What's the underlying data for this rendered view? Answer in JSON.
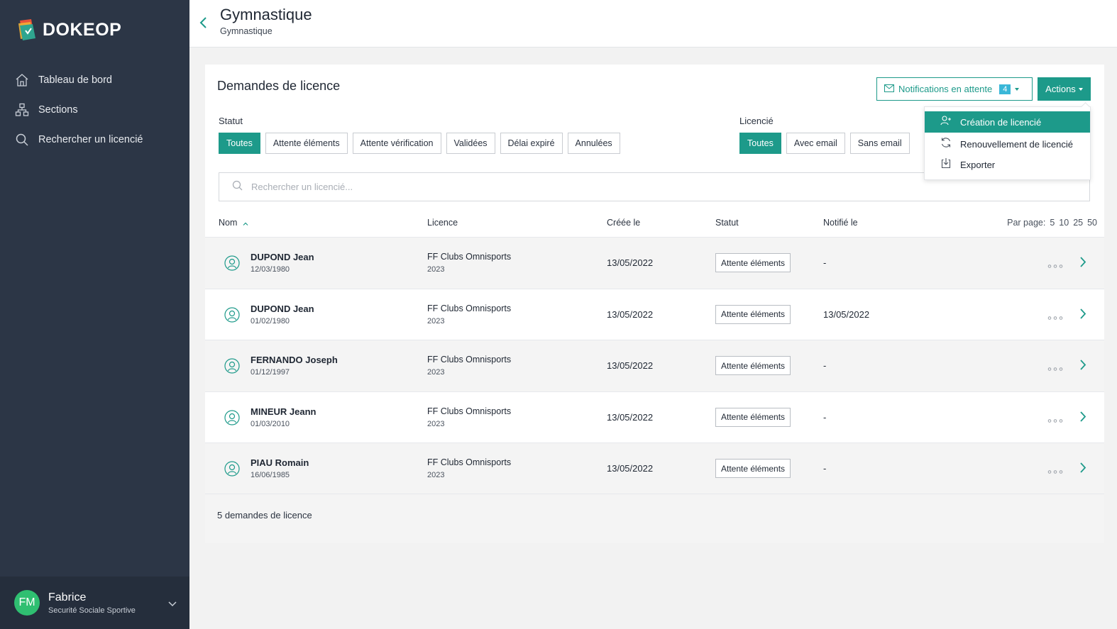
{
  "app": {
    "brand": "DOKEOP"
  },
  "sidebar": {
    "items": [
      {
        "label": "Tableau de bord",
        "icon": "home-icon"
      },
      {
        "label": "Sections",
        "icon": "sitemap-icon"
      },
      {
        "label": "Rechercher un licencié",
        "icon": "search-icon"
      }
    ],
    "user": {
      "initials": "FM",
      "name": "Fabrice",
      "org": "Securité Sociale Sportive"
    }
  },
  "header": {
    "title": "Gymnastique",
    "subtitle": "Gymnastique"
  },
  "card": {
    "title": "Demandes de licence",
    "notifications": {
      "label": "Notifications en attente",
      "count": "4"
    },
    "actions_label": "Actions",
    "statut_label": "Statut",
    "statut_filters": [
      "Toutes",
      "Attente éléments",
      "Attente vérification",
      "Validées",
      "Délai expiré",
      "Annulées"
    ],
    "licencie_label": "Licencié",
    "licencie_filters": [
      "Toutes",
      "Avec email",
      "Sans email"
    ],
    "search_placeholder": "Rechercher un licencié...",
    "columns": {
      "nom": "Nom",
      "licence": "Licence",
      "creee": "Créée le",
      "statut": "Statut",
      "notifie": "Notifié le"
    },
    "per_page": {
      "label": "Par page:",
      "options": [
        "5",
        "10",
        "25",
        "50"
      ]
    },
    "rows": [
      {
        "name": "DUPOND Jean",
        "dob": "12/03/1980",
        "licence": "FF Clubs Omnisports",
        "year": "2023",
        "created": "13/05/2022",
        "status": "Attente éléments",
        "notified": "-"
      },
      {
        "name": "DUPOND Jean",
        "dob": "01/02/1980",
        "licence": "FF Clubs Omnisports",
        "year": "2023",
        "created": "13/05/2022",
        "status": "Attente éléments",
        "notified": "13/05/2022"
      },
      {
        "name": "FERNANDO Joseph",
        "dob": "01/12/1997",
        "licence": "FF Clubs Omnisports",
        "year": "2023",
        "created": "13/05/2022",
        "status": "Attente éléments",
        "notified": "-"
      },
      {
        "name": "MINEUR Jeann",
        "dob": "01/03/2010",
        "licence": "FF Clubs Omnisports",
        "year": "2023",
        "created": "13/05/2022",
        "status": "Attente éléments",
        "notified": "-"
      },
      {
        "name": "PIAU Romain",
        "dob": "16/06/1985",
        "licence": "FF Clubs Omnisports",
        "year": "2023",
        "created": "13/05/2022",
        "status": "Attente éléments",
        "notified": "-"
      }
    ],
    "footer_count": "5 demandes de licence"
  },
  "actions_menu": {
    "items": [
      {
        "label": "Création de licencié",
        "icon": "add-user-icon"
      },
      {
        "label": "Renouvellement de licencié",
        "icon": "refresh-icon"
      },
      {
        "label": "Exporter",
        "icon": "download-icon"
      }
    ]
  },
  "colors": {
    "accent": "#1d9a8a",
    "sidebar": "#2c3646",
    "badge": "#3ab7d8",
    "avatar": "#2fbf71"
  }
}
